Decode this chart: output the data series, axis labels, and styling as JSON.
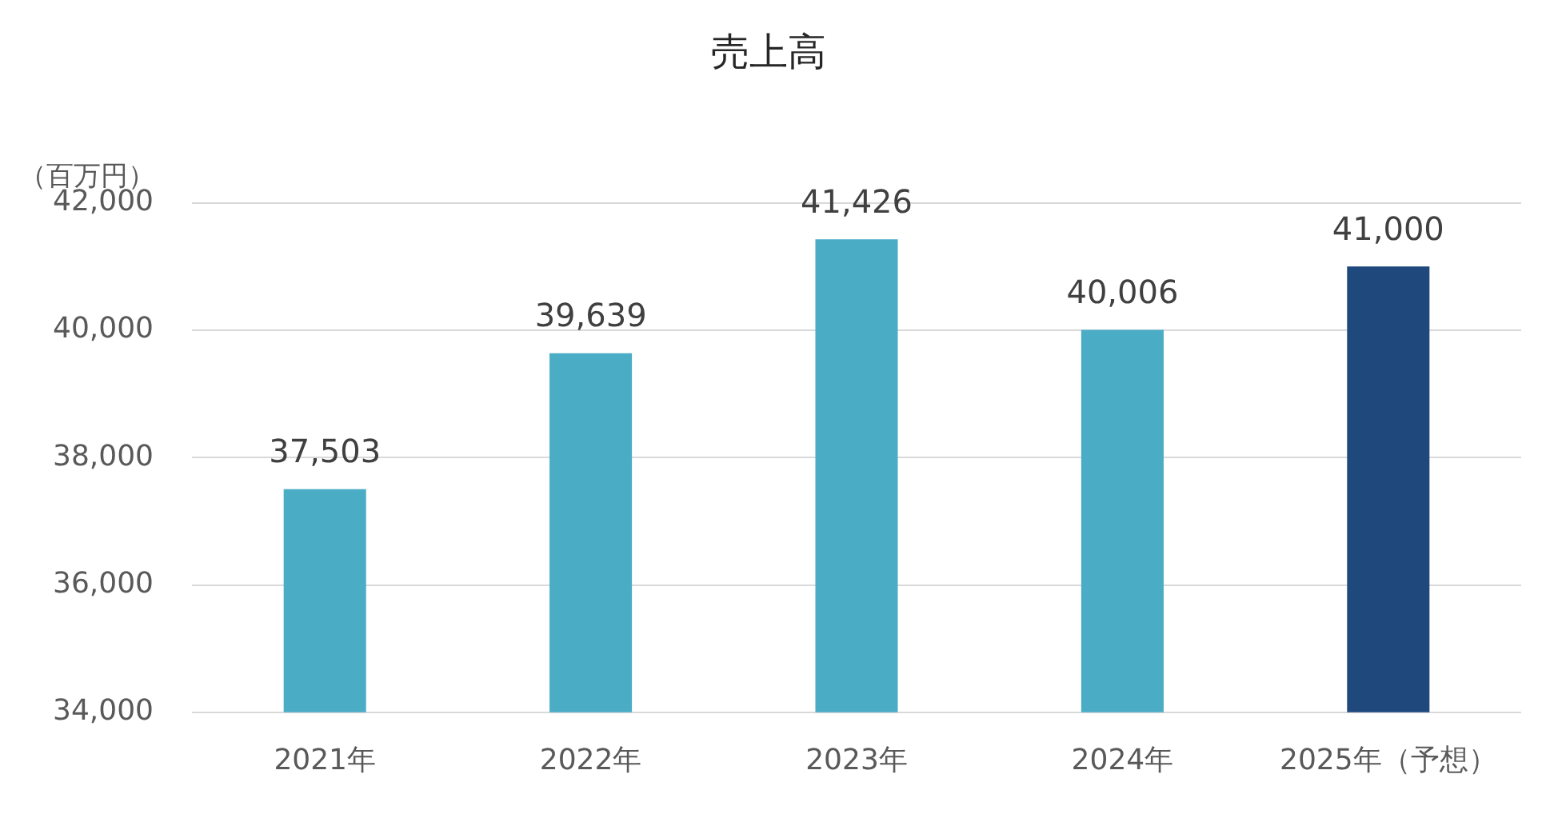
{
  "chart_data": {
    "type": "bar",
    "title": "売上高",
    "ylabel": "（百万円）",
    "categories": [
      "2021年",
      "2022年",
      "2023年",
      "2024年",
      "2025年（予想）"
    ],
    "values": [
      37503,
      39639,
      41426,
      40006,
      41000
    ],
    "value_labels": [
      "37,503",
      "39,639",
      "41,426",
      "40,006",
      "41,000"
    ],
    "colors": [
      "#4bacc6",
      "#4bacc6",
      "#4bacc6",
      "#4bacc6",
      "#1f497d"
    ],
    "ylim": [
      34000,
      42000
    ],
    "yticks": [
      {
        "value": 34000,
        "label": "34,000"
      },
      {
        "value": 36000,
        "label": "36,000"
      },
      {
        "value": 38000,
        "label": "38,000"
      },
      {
        "value": 40000,
        "label": "40,000"
      },
      {
        "value": 42000,
        "label": "42,000"
      }
    ],
    "grid": "y",
    "legend": false
  }
}
